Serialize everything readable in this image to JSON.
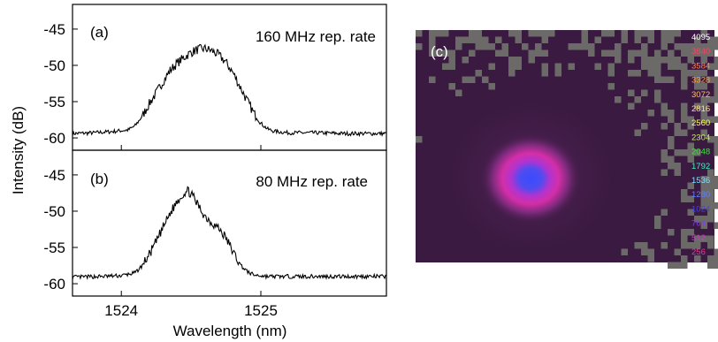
{
  "chart_data": [
    {
      "type": "line",
      "panel": "(a)",
      "annotation": "160 MHz rep. rate",
      "xlabel": "Wavelength (nm)",
      "ylabel": "Intensity (dB)",
      "xlim": [
        1523.65,
        1525.9
      ],
      "ylim": [
        -61.7,
        -41.6
      ],
      "xticks": [
        1524,
        1525
      ],
      "yticks": [
        -60,
        -55,
        -50,
        -45
      ],
      "series": [
        {
          "x": [
            1523.65,
            1523.8,
            1523.95,
            1524.05,
            1524.1,
            1524.15,
            1524.2,
            1524.25,
            1524.3,
            1524.35,
            1524.4,
            1524.45,
            1524.5,
            1524.55,
            1524.6,
            1524.65,
            1524.7,
            1524.75,
            1524.8,
            1524.85,
            1524.9,
            1524.95,
            1525.0,
            1525.05,
            1525.1,
            1525.2,
            1525.4,
            1525.6,
            1525.9
          ],
          "y": [
            -59.4,
            -59.3,
            -59.1,
            -58.9,
            -58.3,
            -57.0,
            -55.3,
            -53.8,
            -52.2,
            -50.7,
            -49.7,
            -48.9,
            -48.2,
            -47.8,
            -47.7,
            -48.0,
            -48.6,
            -49.6,
            -51.0,
            -52.9,
            -54.8,
            -56.6,
            -58.0,
            -58.8,
            -59.1,
            -59.3,
            -59.3,
            -59.4,
            -59.4
          ]
        }
      ]
    },
    {
      "type": "line",
      "panel": "(b)",
      "annotation": "80 MHz rep. rate",
      "xlabel": "Wavelength (nm)",
      "ylabel": "Intensity (dB)",
      "xlim": [
        1523.65,
        1525.9
      ],
      "ylim": [
        -61.7,
        -41.6
      ],
      "xticks": [
        1524,
        1525
      ],
      "yticks": [
        -60,
        -55,
        -50,
        -45
      ],
      "series": [
        {
          "x": [
            1523.65,
            1523.85,
            1524.0,
            1524.1,
            1524.15,
            1524.2,
            1524.25,
            1524.3,
            1524.35,
            1524.4,
            1524.45,
            1524.48,
            1524.5,
            1524.55,
            1524.6,
            1524.65,
            1524.7,
            1524.75,
            1524.8,
            1524.85,
            1524.9,
            1524.95,
            1525.0,
            1525.05,
            1525.1,
            1525.2,
            1525.4,
            1525.6,
            1525.9
          ],
          "y": [
            -59.1,
            -59.0,
            -58.9,
            -58.5,
            -57.5,
            -56.0,
            -54.2,
            -52.2,
            -50.3,
            -48.6,
            -47.5,
            -47.2,
            -47.6,
            -49.2,
            -50.7,
            -51.6,
            -52.4,
            -53.7,
            -55.6,
            -57.3,
            -58.3,
            -58.8,
            -58.9,
            -59.0,
            -59.0,
            -59.0,
            -59.0,
            -59.0,
            -59.0
          ]
        }
      ]
    },
    {
      "type": "heatmap",
      "panel": "(c)",
      "colorbar_ticks": [
        "4095",
        "3840",
        "3584",
        "3328",
        "3072",
        "2816",
        "2560",
        "2304",
        "2048",
        "1792",
        "1536",
        "1280",
        "1024",
        "768",
        "512",
        "256"
      ],
      "colorbar_colors": [
        "#ffffff",
        "#ff4060",
        "#ff8050",
        "#ffa040",
        "#ffc060",
        "#ffe080",
        "#ffff60",
        "#c0f060",
        "#40e040",
        "#40f0c0",
        "#80e0ff",
        "#6080ff",
        "#4040ff",
        "#8040e0",
        "#c040c0",
        "#e04090"
      ],
      "colormap_description": "spot centred slightly left-of-centre; core blue, ring magenta/pink, background dark purple with grey speckles",
      "peak_level": "1536",
      "background_color": "#3a1a40",
      "noise_color": "#6c6a68"
    }
  ]
}
